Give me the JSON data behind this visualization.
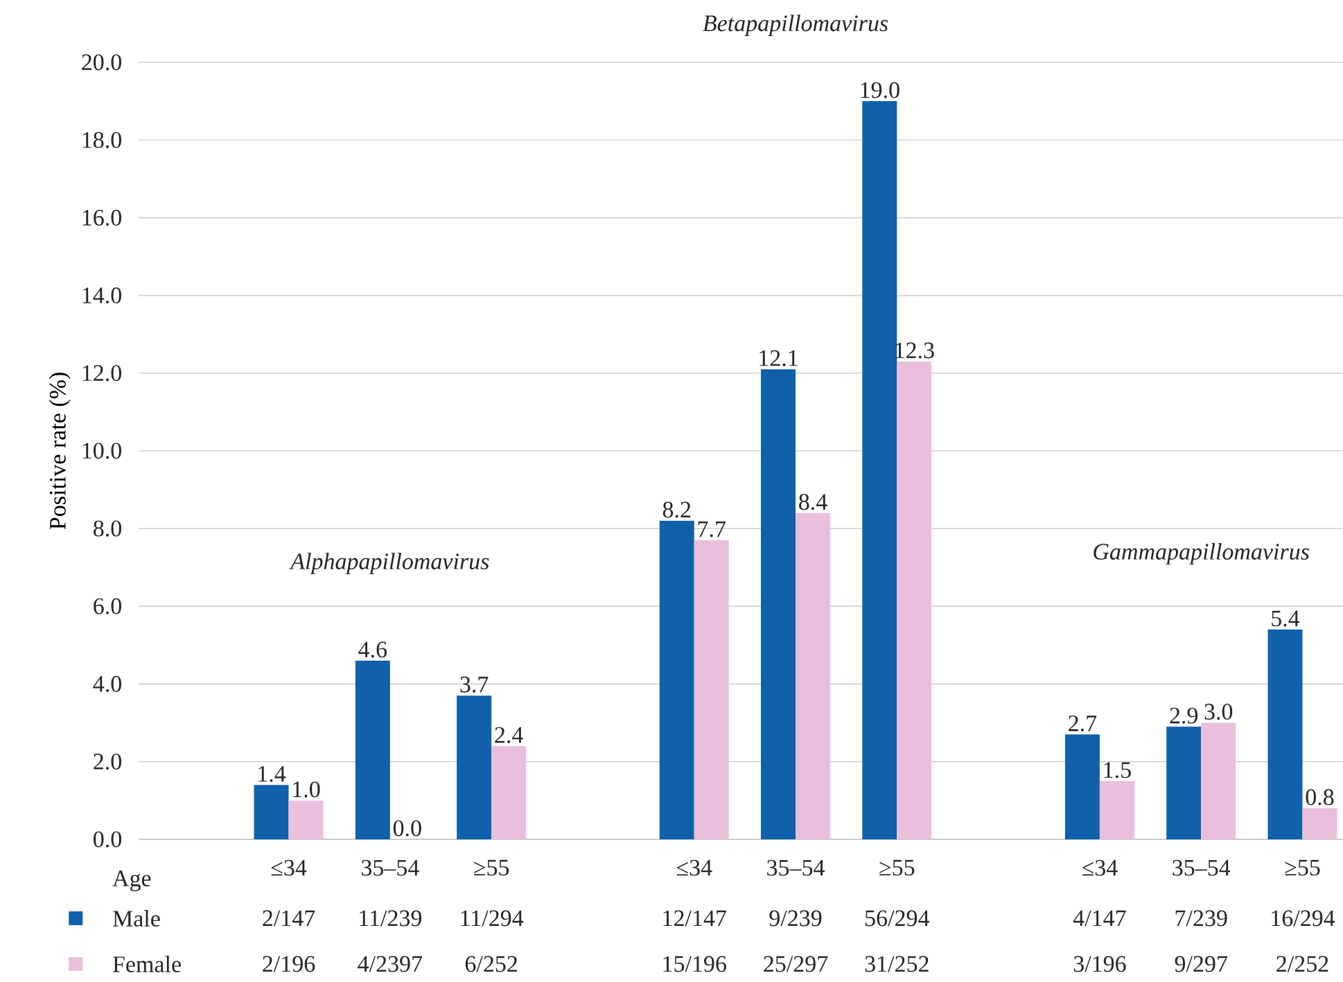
{
  "chart_data": {
    "type": "bar",
    "ylabel": "Positive rate (%)",
    "xlabel": "Age",
    "categories": [
      null,
      "≤34",
      "35–54",
      "≥55",
      null,
      "≤34",
      "35–54",
      "≥55",
      null,
      "≤34",
      "35–54",
      "≥55"
    ],
    "series": [
      {
        "name": "Male",
        "color": "#1060aa",
        "values": [
          null,
          1.4,
          4.6,
          3.7,
          null,
          8.2,
          12.1,
          19.0,
          null,
          2.7,
          2.9,
          5.4
        ],
        "value_labels": [
          null,
          "1.4",
          "4.6",
          "3.7",
          null,
          "8.2",
          "12.1",
          "19.0",
          null,
          "2.7",
          "2.9",
          "5.4"
        ]
      },
      {
        "name": "Female",
        "color": "#eabfdb",
        "values": [
          null,
          1.0,
          0.0,
          2.4,
          null,
          7.7,
          8.4,
          12.3,
          null,
          1.5,
          3.0,
          0.8
        ],
        "value_labels": [
          null,
          "1.0",
          "0.0",
          "2.4",
          null,
          "7.7",
          "8.4",
          "12.3",
          null,
          "1.5",
          "3.0",
          "0.8"
        ]
      }
    ],
    "ylim": [
      0,
      20
    ],
    "yticks": [
      {
        "value": 0,
        "label": "0.0"
      },
      {
        "value": 2,
        "label": "2.0"
      },
      {
        "value": 4,
        "label": "4.0"
      },
      {
        "value": 6,
        "label": "6.0"
      },
      {
        "value": 8,
        "label": "8.0"
      },
      {
        "value": 10,
        "label": "10.0"
      },
      {
        "value": 12,
        "label": "12.0"
      },
      {
        "value": 14,
        "label": "14.0"
      },
      {
        "value": 16,
        "label": "16.0"
      },
      {
        "value": 18,
        "label": "18.0"
      },
      {
        "value": 20,
        "label": "20.0"
      }
    ],
    "grid": "y",
    "legend": "bottom",
    "annotations": [
      "Alphapapillomavirus",
      "Betapapillomavirus",
      "Gammapapillomavirus",
      "2/147",
      "11/239",
      "11/294",
      "12/147",
      "9/239",
      "56/294",
      "4/147",
      "7/239",
      "16/294",
      "2/196",
      "4/2397",
      "6/252",
      "15/196",
      "25/297",
      "31/252",
      "3/196",
      "9/297",
      "2/252"
    ]
  }
}
